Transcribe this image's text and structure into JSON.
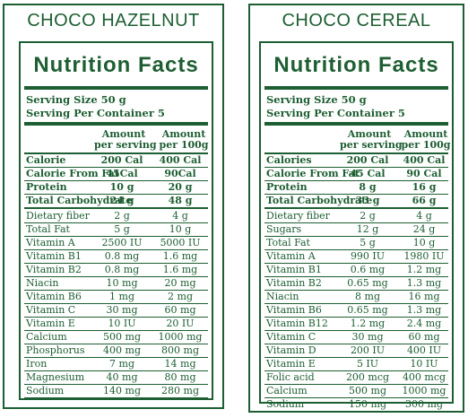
{
  "panels": [
    {
      "title": "CHOCO HAZELNUT",
      "facts_label": "Nutrition Facts",
      "serving_size": "Serving Size 50 g",
      "serving_per_container": "Serving Per Container 5",
      "col1_header": [
        "Amount",
        "per serving"
      ],
      "col2_header": [
        "Amount",
        "per 100g"
      ],
      "bold_rows": [
        [
          "Calorie",
          "200 Cal",
          "400 Cal"
        ],
        [
          "Calorie From Fat",
          "45Cal",
          "90Cal"
        ],
        [
          "Protein",
          "10 g",
          "20 g"
        ],
        [
          "Total Carbohydrate",
          "24 g",
          "48 g"
        ]
      ],
      "rows": [
        [
          "Dietary fiber",
          "2 g",
          "4 g"
        ],
        [
          "Total Fat",
          "5 g",
          "10 g"
        ],
        [
          "Vitamin A",
          "2500 IU",
          "5000 IU"
        ],
        [
          "Vitamin B1",
          "0.8 mg",
          "1.6 mg"
        ],
        [
          "Vitamin B2",
          "0.8 mg",
          "1.6 mg"
        ],
        [
          "Niacin",
          "10 mg",
          "20 mg"
        ],
        [
          "Vitamin B6",
          "1 mg",
          "2 mg"
        ],
        [
          "Vitamin C",
          "30 mg",
          "60 mg"
        ],
        [
          "Vitamin E",
          "10 IU",
          "20 IU"
        ],
        [
          "Calcium",
          "500 mg",
          "1000 mg"
        ],
        [
          "Phosphorus",
          "400 mg",
          "800 mg"
        ],
        [
          "Iron",
          "7 mg",
          "14 mg"
        ],
        [
          "Magnesium",
          "40 mg",
          "80 mg"
        ],
        [
          "Sodium",
          "140 mg",
          "280 mg"
        ]
      ]
    },
    {
      "title": "CHOCO CEREAL",
      "facts_label": "Nutrition Facts",
      "serving_size": "Serving Size 50 g",
      "serving_per_container": "Serving Per Container 5",
      "col1_header": [
        "Amount",
        "per serving"
      ],
      "col2_header": [
        "Amount",
        "per 100g"
      ],
      "bold_rows": [
        [
          "Calories",
          "200 Cal",
          "400 Cal"
        ],
        [
          "Calorie From Fat",
          "45 Cal",
          "90 Cal"
        ],
        [
          "Protein",
          "8 g",
          "16 g"
        ],
        [
          "Total Carbohydrate",
          "33 g",
          "66 g"
        ]
      ],
      "rows": [
        [
          "Dietary fiber",
          "2 g",
          "4 g"
        ],
        [
          "Sugars",
          "12 g",
          "24 g"
        ],
        [
          "Total Fat",
          "5 g",
          "10 g"
        ],
        [
          "Vitamin A",
          "990 IU",
          "1980 IU"
        ],
        [
          "Vitamin B1",
          "0.6 mg",
          "1.2 mg"
        ],
        [
          "Vitamin B2",
          "0.65 mg",
          "1.3 mg"
        ],
        [
          "Niacin",
          "8 mg",
          "16 mg"
        ],
        [
          "Vitamin B6",
          "0.65 mg",
          "1.3 mg"
        ],
        [
          "Vitamin B12",
          "1.2 mg",
          "2.4 mg"
        ],
        [
          "Vitamin C",
          "30 mg",
          "60 mg"
        ],
        [
          "Vitamin D",
          "200 IU",
          "400 IU"
        ],
        [
          "Vitamin E",
          "5 IU",
          "10 IU"
        ],
        [
          "Folic acid",
          "200 mcg",
          "400 mcg"
        ],
        [
          "Calcium",
          "500 mg",
          "1000 mg"
        ],
        [
          "Sodium",
          "150 mg",
          "300 mg"
        ]
      ]
    }
  ],
  "colors": {
    "ink": "#1d5e32",
    "background": "#ffffff"
  }
}
